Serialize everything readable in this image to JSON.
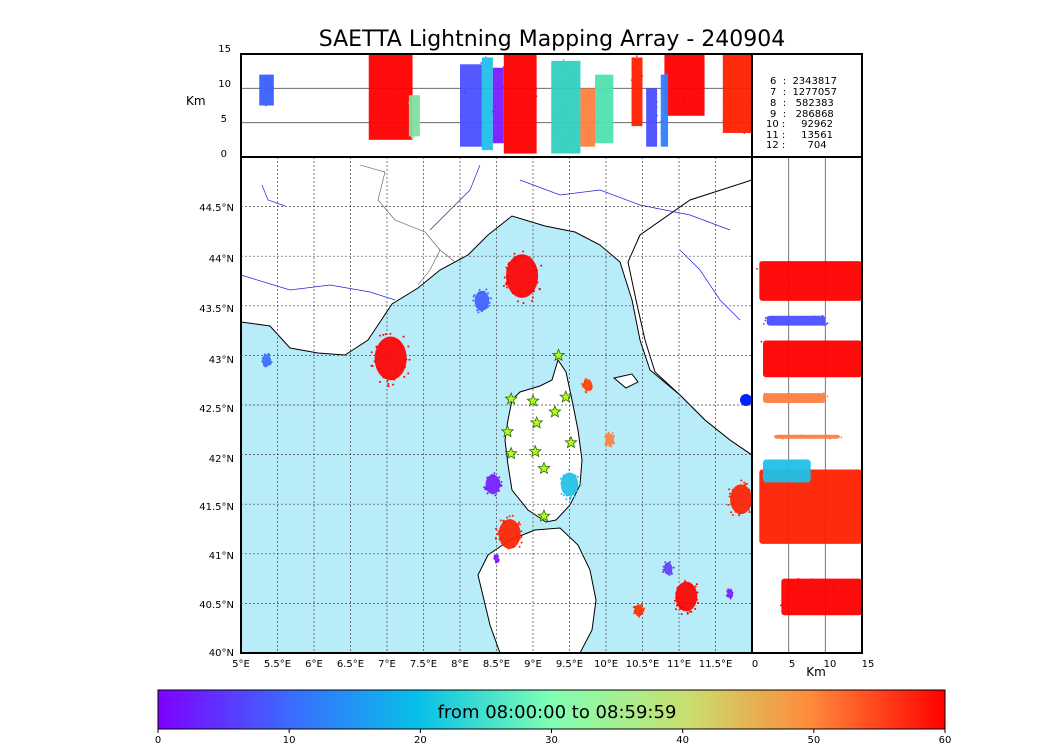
{
  "chart_data": {
    "type": "scatter",
    "title": "SAETTA Lightning Mapping Array - 240904",
    "map": {
      "lon_range": [
        5.0,
        12.0
      ],
      "lat_range": [
        40.0,
        45.0
      ],
      "lon_ticks": [
        "5°E",
        "5.5°E",
        "6°E",
        "6.5°E",
        "7°E",
        "7.5°E",
        "8°E",
        "8.5°E",
        "9°E",
        "9.5°E",
        "10°E",
        "10.5°E",
        "11°E",
        "11.5°E"
      ],
      "lat_ticks": [
        "40°N",
        "40.5°N",
        "41°N",
        "41.5°N",
        "42°N",
        "42.5°N",
        "43°N",
        "43.5°N",
        "44°N",
        "44.5°N"
      ],
      "grid": true
    },
    "top_panel": {
      "ylabel": "Km",
      "y_ticks": [
        "0",
        "5",
        "10",
        "15"
      ],
      "ylim": [
        0,
        15
      ]
    },
    "right_panel": {
      "xlabel": "Km",
      "x_ticks": [
        "0",
        "5",
        "10",
        "15"
      ],
      "xlim": [
        0,
        15
      ]
    },
    "stats": [
      {
        "label": "6  :  2343817",
        "color": "#000000"
      },
      {
        "label": "7  :  1277057",
        "color": "#ff0000"
      },
      {
        "label": "8  :   582383",
        "color": "#000000"
      },
      {
        "label": "9  :   286868",
        "color": "#000000"
      },
      {
        "label": "10 :     92962",
        "color": "#000000"
      },
      {
        "label": "11 :     13561",
        "color": "#000000"
      },
      {
        "label": "12 :       704",
        "color": "#000000"
      }
    ],
    "colorbar": {
      "label": "from 08:00:00 to 08:59:59",
      "range": [
        0,
        60
      ],
      "ticks": [
        "0",
        "10",
        "20",
        "30",
        "40",
        "50",
        "60"
      ],
      "colormap": "rainbow"
    },
    "stations": [
      {
        "lon": 9.35,
        "lat": 43.0
      },
      {
        "lon": 8.7,
        "lat": 42.56
      },
      {
        "lon": 9.0,
        "lat": 42.54
      },
      {
        "lon": 9.45,
        "lat": 42.58
      },
      {
        "lon": 9.3,
        "lat": 42.43
      },
      {
        "lon": 9.05,
        "lat": 42.32
      },
      {
        "lon": 8.65,
        "lat": 42.23
      },
      {
        "lon": 9.52,
        "lat": 42.12
      },
      {
        "lon": 8.7,
        "lat": 42.01
      },
      {
        "lon": 9.03,
        "lat": 42.03
      },
      {
        "lon": 9.15,
        "lat": 41.86
      },
      {
        "lon": 9.15,
        "lat": 41.38
      }
    ],
    "clusters": [
      {
        "lon": 8.85,
        "lat": 43.8,
        "radius_deg": 0.22,
        "color": "#ff0000"
      },
      {
        "lon": 7.05,
        "lat": 42.97,
        "radius_deg": 0.22,
        "color": "#ff0000"
      },
      {
        "lon": 8.68,
        "lat": 41.2,
        "radius_deg": 0.15,
        "color": "#ff2000"
      },
      {
        "lon": 11.1,
        "lat": 40.57,
        "radius_deg": 0.15,
        "color": "#ff0000"
      },
      {
        "lon": 11.85,
        "lat": 41.55,
        "radius_deg": 0.15,
        "color": "#ff2000"
      },
      {
        "lon": 10.45,
        "lat": 40.43,
        "radius_deg": 0.06,
        "color": "#ff3000"
      },
      {
        "lon": 9.75,
        "lat": 42.7,
        "radius_deg": 0.06,
        "color": "#ff4000"
      },
      {
        "lon": 8.45,
        "lat": 41.7,
        "radius_deg": 0.1,
        "color": "#7a1cff"
      },
      {
        "lon": 9.5,
        "lat": 41.7,
        "radius_deg": 0.12,
        "color": "#20c0e8"
      },
      {
        "lon": 8.3,
        "lat": 43.55,
        "radius_deg": 0.1,
        "color": "#4060ff"
      },
      {
        "lon": 5.35,
        "lat": 42.95,
        "radius_deg": 0.06,
        "color": "#3a70ff"
      },
      {
        "lon": 10.05,
        "lat": 42.15,
        "radius_deg": 0.06,
        "color": "#ff8040"
      },
      {
        "lon": 10.85,
        "lat": 40.85,
        "radius_deg": 0.06,
        "color": "#6040ff"
      },
      {
        "lon": 11.7,
        "lat": 40.6,
        "radius_deg": 0.04,
        "color": "#7a1cff"
      },
      {
        "lon": 8.5,
        "lat": 40.95,
        "radius_deg": 0.03,
        "color": "#7a1cff"
      }
    ],
    "top_bands": [
      {
        "x0": 5.25,
        "x1": 5.45,
        "y0": 7.5,
        "y1": 12.0,
        "color": "#3a60ff"
      },
      {
        "x0": 6.75,
        "x1": 7.35,
        "y0": 2.5,
        "y1": 15.0,
        "color": "#ff0000"
      },
      {
        "x0": 7.3,
        "x1": 7.45,
        "y0": 3.0,
        "y1": 9.0,
        "color": "#7fe0a0"
      },
      {
        "x0": 8.0,
        "x1": 8.3,
        "y0": 1.5,
        "y1": 13.5,
        "color": "#4a50ff"
      },
      {
        "x0": 8.3,
        "x1": 8.45,
        "y0": 1.0,
        "y1": 14.5,
        "color": "#20c0e8"
      },
      {
        "x0": 8.45,
        "x1": 8.6,
        "y0": 2.0,
        "y1": 13.0,
        "color": "#7a1cff"
      },
      {
        "x0": 8.6,
        "x1": 9.05,
        "y0": 0.5,
        "y1": 15.0,
        "color": "#ff0000"
      },
      {
        "x0": 9.25,
        "x1": 9.65,
        "y0": 0.5,
        "y1": 14.0,
        "color": "#30d0c0"
      },
      {
        "x0": 9.65,
        "x1": 9.85,
        "y0": 1.5,
        "y1": 10.0,
        "color": "#ff8040"
      },
      {
        "x0": 9.85,
        "x1": 10.1,
        "y0": 2.0,
        "y1": 12.0,
        "color": "#50e0b0"
      },
      {
        "x0": 10.35,
        "x1": 10.5,
        "y0": 4.5,
        "y1": 14.5,
        "color": "#ff2000"
      },
      {
        "x0": 10.55,
        "x1": 10.7,
        "y0": 1.5,
        "y1": 10.0,
        "color": "#4a50ff"
      },
      {
        "x0": 10.8,
        "x1": 11.35,
        "y0": 6.0,
        "y1": 15.0,
        "color": "#ff0000"
      },
      {
        "x0": 10.75,
        "x1": 10.85,
        "y0": 1.5,
        "y1": 12.0,
        "color": "#3080ff"
      },
      {
        "x0": 11.6,
        "x1": 12.0,
        "y0": 3.5,
        "y1": 15.0,
        "color": "#ff2000"
      }
    ],
    "right_bands": [
      {
        "x0": 1.0,
        "x1": 15.0,
        "y0": 43.55,
        "y1": 43.95,
        "color": "#ff0000"
      },
      {
        "x0": 2.0,
        "x1": 10.0,
        "y0": 43.3,
        "y1": 43.4,
        "color": "#4a50ff"
      },
      {
        "x0": 1.5,
        "x1": 15.0,
        "y0": 42.78,
        "y1": 43.15,
        "color": "#ff0000"
      },
      {
        "x0": 1.5,
        "x1": 10.0,
        "y0": 42.52,
        "y1": 42.62,
        "color": "#ff8040"
      },
      {
        "x0": 3.0,
        "x1": 12.0,
        "y0": 42.16,
        "y1": 42.2,
        "color": "#ff8040"
      },
      {
        "x0": 1.0,
        "x1": 15.0,
        "y0": 41.1,
        "y1": 41.85,
        "color": "#ff2000"
      },
      {
        "x0": 1.5,
        "x1": 8.0,
        "y0": 41.72,
        "y1": 41.95,
        "color": "#20c0e8"
      },
      {
        "x0": 4.0,
        "x1": 15.0,
        "y0": 40.38,
        "y1": 40.75,
        "color": "#ff0000"
      }
    ]
  }
}
